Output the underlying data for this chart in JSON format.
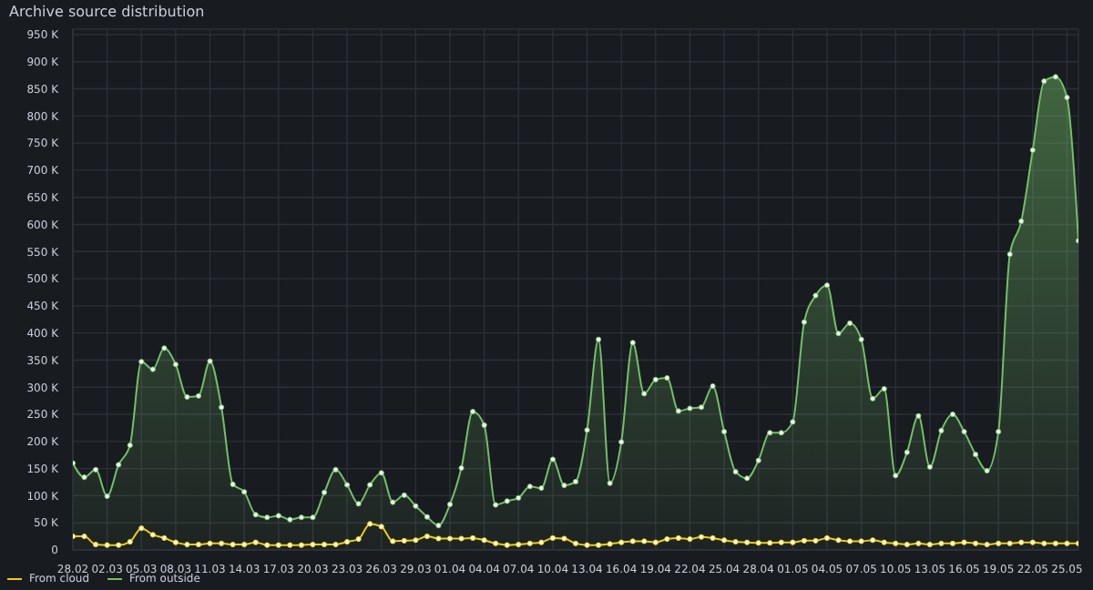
{
  "chart_data": {
    "type": "line",
    "title": "Archive source distribution",
    "categories": [
      "28.02",
      null,
      null,
      "02.03",
      null,
      null,
      "05.03",
      null,
      null,
      "08.03",
      null,
      null,
      "11.03",
      null,
      null,
      "14.03",
      null,
      null,
      "17.03",
      null,
      null,
      "20.03",
      null,
      null,
      "23.03",
      null,
      null,
      "26.03",
      null,
      null,
      "29.03",
      null,
      null,
      "01.04",
      null,
      null,
      "04.04",
      null,
      null,
      "07.04",
      null,
      null,
      "10.04",
      null,
      null,
      "13.04",
      null,
      null,
      "16.04",
      null,
      null,
      "19.04",
      null,
      null,
      "22.04",
      null,
      null,
      "25.04",
      null,
      null,
      "28.04",
      null,
      null,
      "01.05",
      null,
      null,
      "04.05",
      null,
      null,
      "07.05",
      null,
      null,
      "10.05",
      null,
      null,
      "13.05",
      null,
      null,
      "16.05",
      null,
      null,
      "19.05",
      null,
      null,
      "22.05",
      null,
      null,
      "25.05",
      null
    ],
    "series": [
      {
        "name": "From outside",
        "type": "area",
        "color": "#73bf69",
        "values": [
          160,
          134,
          148,
          99,
          157,
          193,
          347,
          333,
          372,
          342,
          282,
          284,
          348,
          263,
          121,
          107,
          65,
          60,
          63,
          56,
          60,
          60,
          106,
          148,
          120,
          85,
          120,
          142,
          88,
          101,
          81,
          61,
          45,
          84,
          151,
          255,
          230,
          83,
          90,
          96,
          117,
          114,
          167,
          119,
          126,
          221,
          388,
          123,
          199,
          382,
          288,
          314,
          317,
          256,
          261,
          263,
          302,
          218,
          144,
          132,
          165,
          216,
          216,
          236,
          420,
          469,
          488,
          399,
          418,
          388,
          279,
          297,
          137,
          180,
          247,
          153,
          220,
          250,
          218,
          176,
          146,
          218,
          545,
          606,
          737,
          864,
          872,
          834,
          570
        ]
      },
      {
        "name": "From cloud",
        "color": "#f2cc0c",
        "values": [
          25,
          25,
          10,
          9,
          9,
          15,
          40,
          28,
          22,
          14,
          10,
          10,
          12,
          12,
          10,
          10,
          14,
          9,
          9,
          9,
          9,
          10,
          10,
          10,
          15,
          20,
          48,
          43,
          16,
          17,
          18,
          25,
          21,
          21,
          21,
          22,
          18,
          12,
          9,
          10,
          12,
          14,
          22,
          21,
          12,
          9,
          9,
          11,
          14,
          16,
          16,
          14,
          20,
          22,
          20,
          24,
          22,
          18,
          15,
          14,
          13,
          13,
          14,
          14,
          17,
          17,
          22,
          18,
          16,
          16,
          18,
          14,
          12,
          10,
          12,
          10,
          12,
          12,
          14,
          12,
          10,
          12,
          12,
          14,
          14,
          12,
          12,
          12,
          12
        ]
      }
    ],
    "ylim": [
      0,
      960
    ],
    "yticks": [
      0,
      {
        "value": 50,
        "label": "50 K"
      },
      {
        "value": 100,
        "label": "100 K"
      },
      {
        "value": 150,
        "label": "150 K"
      },
      {
        "value": 200,
        "label": "200 K"
      },
      {
        "value": 250,
        "label": "250 K"
      },
      {
        "value": 300,
        "label": "300 K"
      },
      {
        "value": 350,
        "label": "350 K"
      },
      {
        "value": 400,
        "label": "400 K"
      },
      {
        "value": 450,
        "label": "450 K"
      },
      {
        "value": 500,
        "label": "500 K"
      },
      {
        "value": 550,
        "label": "550 K"
      },
      {
        "value": 600,
        "label": "600 K"
      },
      {
        "value": 650,
        "label": "650 K"
      },
      {
        "value": 700,
        "label": "700 K"
      },
      {
        "value": 750,
        "label": "750 K"
      },
      {
        "value": 800,
        "label": "800 K"
      },
      {
        "value": 850,
        "label": "850 K"
      },
      {
        "value": 900,
        "label": "900 K"
      },
      {
        "value": 950,
        "label": "950 K"
      }
    ],
    "grid": true,
    "legend": "bottom left",
    "marker": "circle",
    "line_style": "solid"
  }
}
